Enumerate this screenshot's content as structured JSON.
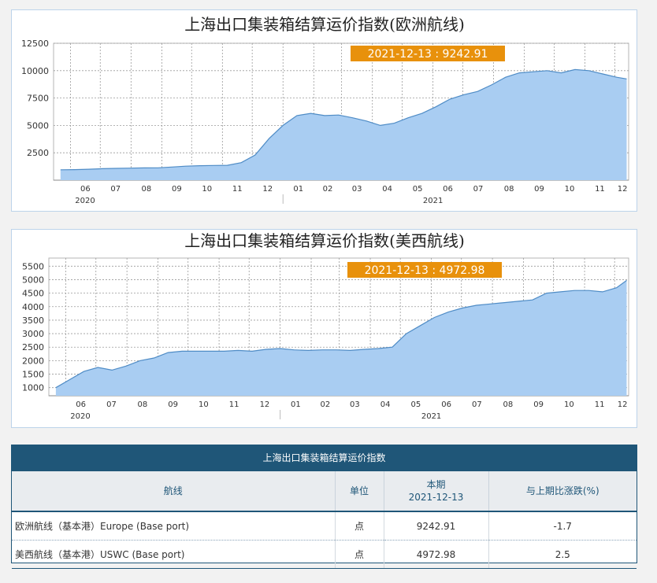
{
  "chart_data": [
    {
      "type": "area",
      "title": "上海出口集装箱结算运价指数(欧洲航线)",
      "tooltip": "2021-12-13 : 9242.91",
      "y_ticks": [
        "2500",
        "5000",
        "7500",
        "10000",
        "12500"
      ],
      "ylim": [
        0,
        12500
      ],
      "month_labels": [
        "06",
        "07",
        "08",
        "09",
        "10",
        "11",
        "12",
        "01",
        "02",
        "03",
        "04",
        "05",
        "06",
        "07",
        "08",
        "09",
        "10",
        "11",
        "12"
      ],
      "year_labels": [
        "2020",
        "2021"
      ],
      "x": [
        "2020-05-22",
        "2020-06-05",
        "2020-06-19",
        "2020-07-03",
        "2020-07-17",
        "2020-07-31",
        "2020-08-14",
        "2020-08-28",
        "2020-09-11",
        "2020-09-25",
        "2020-10-09",
        "2020-10-23",
        "2020-11-06",
        "2020-11-20",
        "2020-12-04",
        "2020-12-18",
        "2021-01-01",
        "2021-01-15",
        "2021-01-29",
        "2021-02-12",
        "2021-02-26",
        "2021-03-12",
        "2021-03-26",
        "2021-04-09",
        "2021-04-23",
        "2021-05-07",
        "2021-05-21",
        "2021-06-04",
        "2021-06-18",
        "2021-07-02",
        "2021-07-16",
        "2021-07-30",
        "2021-08-13",
        "2021-08-27",
        "2021-09-10",
        "2021-09-24",
        "2021-10-08",
        "2021-10-22",
        "2021-11-05",
        "2021-11-19",
        "2021-12-03",
        "2021-12-13"
      ],
      "values": [
        950,
        960,
        1000,
        1050,
        1080,
        1100,
        1120,
        1130,
        1200,
        1280,
        1320,
        1340,
        1360,
        1600,
        2300,
        3800,
        5000,
        5900,
        6100,
        5900,
        5950,
        5700,
        5400,
        5000,
        5200,
        5700,
        6100,
        6700,
        7400,
        7800,
        8100,
        8700,
        9400,
        9800,
        9900,
        10000,
        9800,
        10100,
        10000,
        9700,
        9400,
        9242.91
      ]
    },
    {
      "type": "area",
      "title": "上海出口集装箱结算运价指数(美西航线)",
      "tooltip": "2021-12-13 : 4972.98",
      "y_ticks": [
        "1000",
        "1500",
        "2000",
        "2500",
        "3000",
        "3500",
        "4000",
        "4500",
        "5000",
        "5500"
      ],
      "ylim": [
        700,
        5800
      ],
      "month_labels": [
        "06",
        "07",
        "08",
        "09",
        "10",
        "11",
        "12",
        "01",
        "02",
        "03",
        "04",
        "05",
        "06",
        "07",
        "08",
        "09",
        "10",
        "11",
        "12"
      ],
      "year_labels": [
        "2020",
        "2021"
      ],
      "x": [
        "2020-05-22",
        "2020-06-05",
        "2020-06-19",
        "2020-07-03",
        "2020-07-17",
        "2020-07-31",
        "2020-08-14",
        "2020-08-28",
        "2020-09-11",
        "2020-09-25",
        "2020-10-09",
        "2020-10-23",
        "2020-11-06",
        "2020-11-20",
        "2020-12-04",
        "2020-12-18",
        "2021-01-01",
        "2021-01-15",
        "2021-01-29",
        "2021-02-12",
        "2021-02-26",
        "2021-03-12",
        "2021-03-26",
        "2021-04-09",
        "2021-04-23",
        "2021-05-07",
        "2021-05-21",
        "2021-06-04",
        "2021-06-18",
        "2021-07-02",
        "2021-07-16",
        "2021-07-30",
        "2021-08-13",
        "2021-08-27",
        "2021-09-10",
        "2021-09-24",
        "2021-10-08",
        "2021-10-22",
        "2021-11-05",
        "2021-11-19",
        "2021-12-03",
        "2021-12-13"
      ],
      "values": [
        1000,
        1300,
        1600,
        1750,
        1650,
        1800,
        2000,
        2100,
        2300,
        2350,
        2350,
        2350,
        2350,
        2380,
        2350,
        2420,
        2450,
        2400,
        2380,
        2400,
        2400,
        2380,
        2420,
        2450,
        2500,
        3000,
        3300,
        3600,
        3800,
        3950,
        4050,
        4100,
        4150,
        4200,
        4250,
        4500,
        4550,
        4600,
        4600,
        4550,
        4700,
        4972.98
      ]
    }
  ],
  "table": {
    "title": "上海出口集装箱结算运价指数",
    "headers": {
      "route": "航线",
      "unit": "单位",
      "current": "本期",
      "current_date": "2021-12-13",
      "change": "与上期比涨跌(%)"
    },
    "rows": [
      {
        "route": "欧洲航线（基本港）Europe (Base port)",
        "unit": "点",
        "value": "9242.91",
        "change": "-1.7"
      },
      {
        "route": "美西航线（基本港）USWC (Base port)",
        "unit": "点",
        "value": "4972.98",
        "change": "2.5"
      }
    ]
  },
  "colors": {
    "area_fill": "#a9cdf2",
    "area_stroke": "#4f8cc6",
    "grid": "#9a9a9a",
    "tooltip_bg": "#e8910c",
    "tooltip_text": "#ffffff",
    "table_header_bg": "#1f5678"
  }
}
